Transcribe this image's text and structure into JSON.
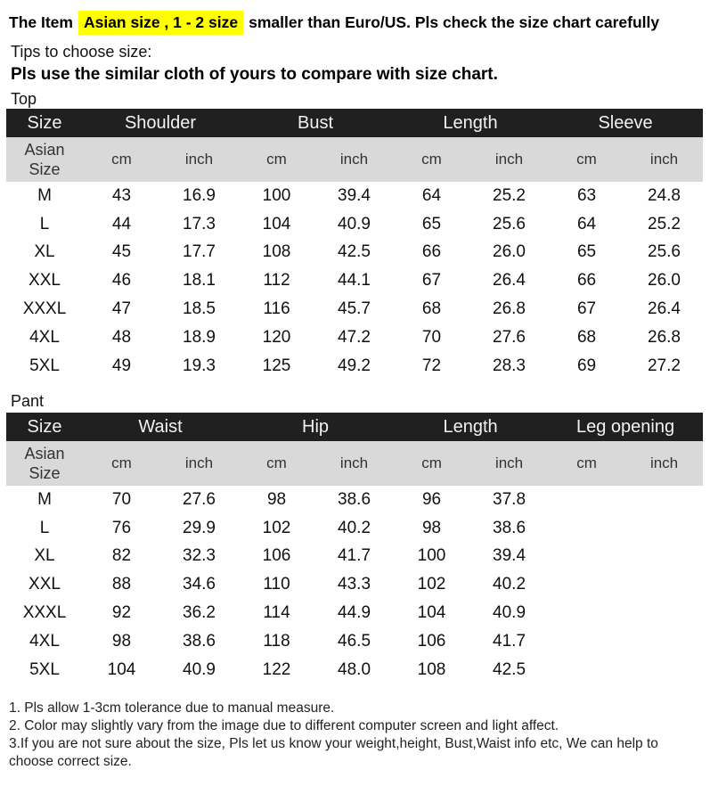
{
  "headline": {
    "prefix": "The Item",
    "highlight": "Asian size , 1 - 2 size",
    "suffix": "smaller than Euro/US. Pls check the size chart carefully"
  },
  "tips": {
    "title": "Tips to choose size:",
    "bold": "Pls use the similar cloth of yours to compare with size chart."
  },
  "top": {
    "label": "Top",
    "size_header": "Size",
    "groups": [
      "Shoulder",
      "Bust",
      "Length",
      "Sleeve"
    ],
    "asian_size": [
      "Asian",
      "Size"
    ],
    "units": [
      "cm",
      "inch",
      "cm",
      "inch",
      "cm",
      "inch",
      "cm",
      "inch"
    ],
    "rows": [
      [
        "M",
        "43",
        "16.9",
        "100",
        "39.4",
        "64",
        "25.2",
        "63",
        "24.8"
      ],
      [
        "L",
        "44",
        "17.3",
        "104",
        "40.9",
        "65",
        "25.6",
        "64",
        "25.2"
      ],
      [
        "XL",
        "45",
        "17.7",
        "108",
        "42.5",
        "66",
        "26.0",
        "65",
        "25.6"
      ],
      [
        "XXL",
        "46",
        "18.1",
        "112",
        "44.1",
        "67",
        "26.4",
        "66",
        "26.0"
      ],
      [
        "XXXL",
        "47",
        "18.5",
        "116",
        "45.7",
        "68",
        "26.8",
        "67",
        "26.4"
      ],
      [
        "4XL",
        "48",
        "18.9",
        "120",
        "47.2",
        "70",
        "27.6",
        "68",
        "26.8"
      ],
      [
        "5XL",
        "49",
        "19.3",
        "125",
        "49.2",
        "72",
        "28.3",
        "69",
        "27.2"
      ]
    ]
  },
  "pant": {
    "label": "Pant",
    "size_header": "Size",
    "groups": [
      "Waist",
      "Hip",
      "Length",
      "Leg opening"
    ],
    "asian_size": [
      "Asian",
      "Size"
    ],
    "units": [
      "cm",
      "inch",
      "cm",
      "inch",
      "cm",
      "inch",
      "cm",
      "inch"
    ],
    "rows": [
      [
        "M",
        "70",
        "27.6",
        "98",
        "38.6",
        "96",
        "37.8",
        "",
        ""
      ],
      [
        "L",
        "76",
        "29.9",
        "102",
        "40.2",
        "98",
        "38.6",
        "",
        ""
      ],
      [
        "XL",
        "82",
        "32.3",
        "106",
        "41.7",
        "100",
        "39.4",
        "",
        ""
      ],
      [
        "XXL",
        "88",
        "34.6",
        "110",
        "43.3",
        "102",
        "40.2",
        "",
        ""
      ],
      [
        "XXXL",
        "92",
        "36.2",
        "114",
        "44.9",
        "104",
        "40.9",
        "",
        ""
      ],
      [
        "4XL",
        "98",
        "38.6",
        "118",
        "46.5",
        "106",
        "41.7",
        "",
        ""
      ],
      [
        "5XL",
        "104",
        "40.9",
        "122",
        "48.0",
        "108",
        "42.5",
        "",
        ""
      ]
    ]
  },
  "notes": [
    "1. Pls allow 1-3cm tolerance due to manual measure.",
    "2. Color may slightly vary from the image due to different computer screen and light affect.",
    "3.If you are not sure about the size, Pls let us know your weight,height, Bust,Waist info etc, We can help to choose correct size."
  ]
}
